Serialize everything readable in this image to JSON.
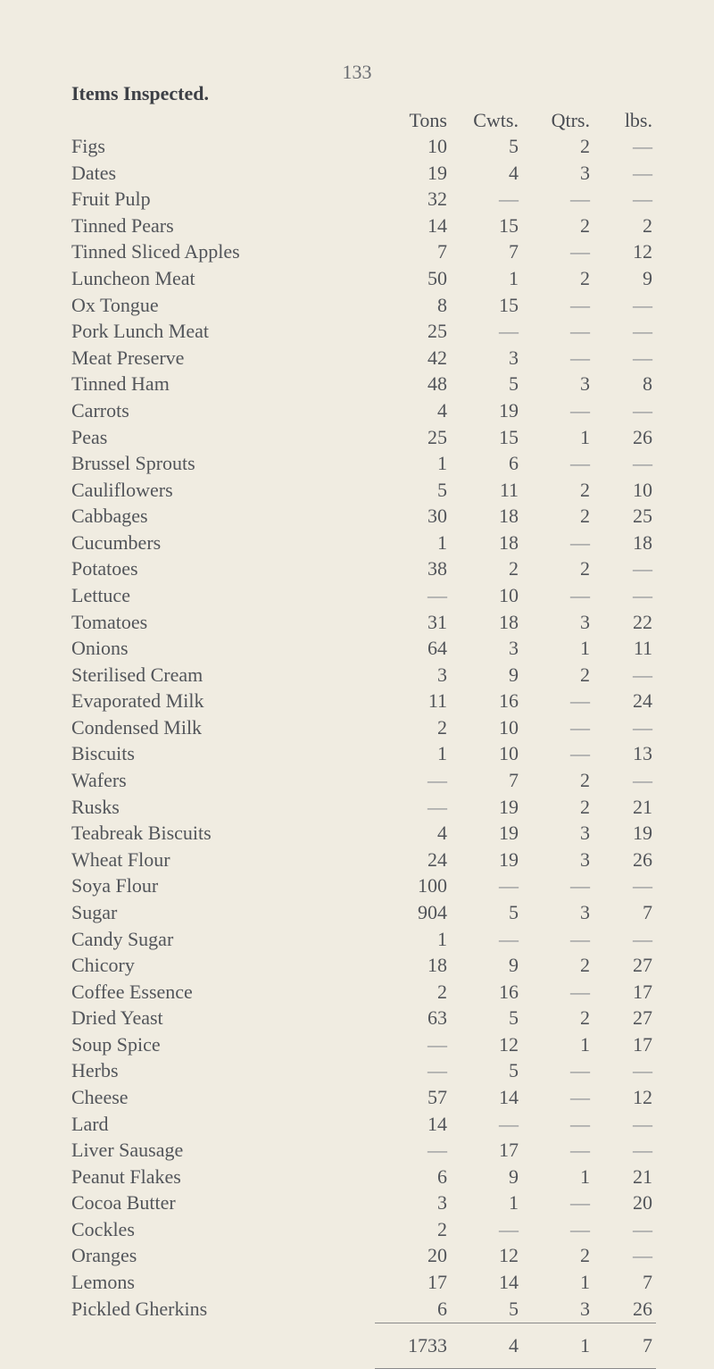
{
  "page_number": "133",
  "title": "Items Inspected.",
  "columns": [
    "Tons",
    "Cwts.",
    "Qtrs.",
    "lbs."
  ],
  "dash": "—",
  "rows": [
    {
      "name": "Figs",
      "tons": "10",
      "cwts": "5",
      "qtrs": "2",
      "lbs": "—"
    },
    {
      "name": "Dates",
      "tons": "19",
      "cwts": "4",
      "qtrs": "3",
      "lbs": "—"
    },
    {
      "name": "Fruit Pulp",
      "tons": "32",
      "cwts": "—",
      "qtrs": "—",
      "lbs": "—"
    },
    {
      "name": "Tinned Pears",
      "tons": "14",
      "cwts": "15",
      "qtrs": "2",
      "lbs": "2"
    },
    {
      "name": "Tinned Sliced Apples",
      "tons": "7",
      "cwts": "7",
      "qtrs": "—",
      "lbs": "12"
    },
    {
      "name": "Luncheon Meat",
      "tons": "50",
      "cwts": "1",
      "qtrs": "2",
      "lbs": "9"
    },
    {
      "name": "Ox Tongue",
      "tons": "8",
      "cwts": "15",
      "qtrs": "—",
      "lbs": "—"
    },
    {
      "name": "Pork Lunch Meat",
      "tons": "25",
      "cwts": "—",
      "qtrs": "—",
      "lbs": "—"
    },
    {
      "name": "Meat Preserve",
      "tons": "42",
      "cwts": "3",
      "qtrs": "—",
      "lbs": "—"
    },
    {
      "name": "Tinned Ham",
      "tons": "48",
      "cwts": "5",
      "qtrs": "3",
      "lbs": "8"
    },
    {
      "name": "Carrots",
      "tons": "4",
      "cwts": "19",
      "qtrs": "—",
      "lbs": "—"
    },
    {
      "name": "Peas",
      "tons": "25",
      "cwts": "15",
      "qtrs": "1",
      "lbs": "26"
    },
    {
      "name": "Brussel Sprouts",
      "tons": "1",
      "cwts": "6",
      "qtrs": "—",
      "lbs": "—"
    },
    {
      "name": "Cauliflowers",
      "tons": "5",
      "cwts": "11",
      "qtrs": "2",
      "lbs": "10"
    },
    {
      "name": "Cabbages",
      "tons": "30",
      "cwts": "18",
      "qtrs": "2",
      "lbs": "25"
    },
    {
      "name": "Cucumbers",
      "tons": "1",
      "cwts": "18",
      "qtrs": "—",
      "lbs": "18"
    },
    {
      "name": "Potatoes",
      "tons": "38",
      "cwts": "2",
      "qtrs": "2",
      "lbs": "—"
    },
    {
      "name": "Lettuce",
      "tons": "—",
      "cwts": "10",
      "qtrs": "—",
      "lbs": "—"
    },
    {
      "name": "Tomatoes",
      "tons": "31",
      "cwts": "18",
      "qtrs": "3",
      "lbs": "22"
    },
    {
      "name": "Onions",
      "tons": "64",
      "cwts": "3",
      "qtrs": "1",
      "lbs": "11"
    },
    {
      "name": "Sterilised Cream",
      "tons": "3",
      "cwts": "9",
      "qtrs": "2",
      "lbs": "—"
    },
    {
      "name": "Evaporated Milk",
      "tons": "11",
      "cwts": "16",
      "qtrs": "—",
      "lbs": "24"
    },
    {
      "name": "Condensed Milk",
      "tons": "2",
      "cwts": "10",
      "qtrs": "—",
      "lbs": "—"
    },
    {
      "name": "Biscuits",
      "tons": "1",
      "cwts": "10",
      "qtrs": "—",
      "lbs": "13"
    },
    {
      "name": "Wafers",
      "tons": "—",
      "cwts": "7",
      "qtrs": "2",
      "lbs": "—"
    },
    {
      "name": "Rusks",
      "tons": "—",
      "cwts": "19",
      "qtrs": "2",
      "lbs": "21"
    },
    {
      "name": "Teabreak Biscuits",
      "tons": "4",
      "cwts": "19",
      "qtrs": "3",
      "lbs": "19"
    },
    {
      "name": "Wheat Flour",
      "tons": "24",
      "cwts": "19",
      "qtrs": "3",
      "lbs": "26"
    },
    {
      "name": "Soya Flour",
      "tons": "100",
      "cwts": "—",
      "qtrs": "—",
      "lbs": "—"
    },
    {
      "name": "Sugar",
      "tons": "904",
      "cwts": "5",
      "qtrs": "3",
      "lbs": "7"
    },
    {
      "name": "Candy Sugar",
      "tons": "1",
      "cwts": "—",
      "qtrs": "—",
      "lbs": "—"
    },
    {
      "name": "Chicory",
      "tons": "18",
      "cwts": "9",
      "qtrs": "2",
      "lbs": "27"
    },
    {
      "name": "Coffee Essence",
      "tons": "2",
      "cwts": "16",
      "qtrs": "—",
      "lbs": "17"
    },
    {
      "name": "Dried Yeast",
      "tons": "63",
      "cwts": "5",
      "qtrs": "2",
      "lbs": "27"
    },
    {
      "name": "Soup Spice",
      "tons": "—",
      "cwts": "12",
      "qtrs": "1",
      "lbs": "17"
    },
    {
      "name": "Herbs",
      "tons": "—",
      "cwts": "5",
      "qtrs": "—",
      "lbs": "—"
    },
    {
      "name": "Cheese",
      "tons": "57",
      "cwts": "14",
      "qtrs": "—",
      "lbs": "12"
    },
    {
      "name": "Lard",
      "tons": "14",
      "cwts": "—",
      "qtrs": "—",
      "lbs": "—"
    },
    {
      "name": "Liver Sausage",
      "tons": "—",
      "cwts": "17",
      "qtrs": "—",
      "lbs": "—"
    },
    {
      "name": "Peanut Flakes",
      "tons": "6",
      "cwts": "9",
      "qtrs": "1",
      "lbs": "21"
    },
    {
      "name": "Cocoa Butter",
      "tons": "3",
      "cwts": "1",
      "qtrs": "—",
      "lbs": "20"
    },
    {
      "name": "Cockles",
      "tons": "2",
      "cwts": "—",
      "qtrs": "—",
      "lbs": "—"
    },
    {
      "name": "Oranges",
      "tons": "20",
      "cwts": "12",
      "qtrs": "2",
      "lbs": "—"
    },
    {
      "name": "Lemons",
      "tons": "17",
      "cwts": "14",
      "qtrs": "1",
      "lbs": "7"
    },
    {
      "name": "Pickled Gherkins",
      "tons": "6",
      "cwts": "5",
      "qtrs": "3",
      "lbs": "26"
    }
  ],
  "totals": {
    "tons": "1733",
    "cwts": "4",
    "qtrs": "1",
    "lbs": "7"
  }
}
